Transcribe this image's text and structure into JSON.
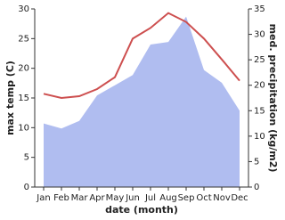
{
  "chart_data": {
    "type": "line_area",
    "x_label": "date (month)",
    "y_label": "max temp (C)",
    "y2_label": "med. precipitation (kg/m2)",
    "categories": [
      "Jan",
      "Feb",
      "Mar",
      "Apr",
      "May",
      "Jun",
      "Jul",
      "Aug",
      "Sep",
      "Oct",
      "Nov",
      "Dec"
    ],
    "series": [
      {
        "name": "max temp",
        "type": "line",
        "color": "#cd4f4f",
        "values": [
          15.7,
          15.0,
          15.3,
          16.5,
          18.5,
          25.0,
          26.8,
          29.3,
          27.8,
          25.0,
          21.5,
          17.9
        ]
      },
      {
        "name": "med. precipitation",
        "type": "area",
        "axis": "y2",
        "color": "#b0bdf0",
        "values": [
          12.5,
          11.5,
          13.0,
          18.0,
          20.0,
          22.0,
          28.0,
          28.5,
          33.5,
          23.0,
          20.5,
          15.0
        ]
      }
    ],
    "ylim": [
      0,
      30
    ],
    "yticks": [
      0,
      5,
      10,
      15,
      20,
      25,
      30
    ],
    "y2lim": [
      0,
      35
    ],
    "y2ticks": [
      0,
      5,
      10,
      15,
      20,
      25,
      30,
      35
    ]
  }
}
